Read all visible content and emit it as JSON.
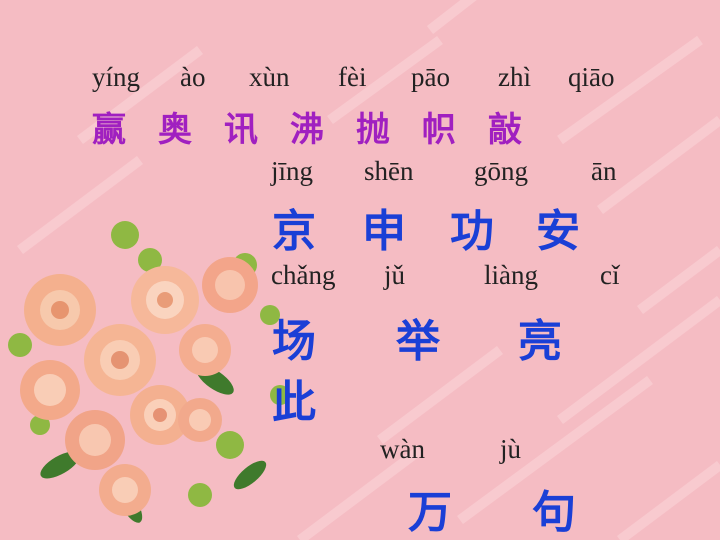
{
  "row1": {
    "pinyin": [
      "yíng",
      "ào",
      "xùn",
      "fèi",
      "pāo",
      "zhì",
      "qiāo"
    ],
    "hanzi": [
      "赢",
      "奥",
      "讯",
      "沸",
      "抛",
      "帜",
      "敲"
    ]
  },
  "row2": {
    "pinyin": [
      "jīng",
      "shēn",
      "gōng",
      "ān"
    ],
    "hanzi": [
      "京",
      "申",
      "功",
      "安"
    ]
  },
  "row3": {
    "pinyin": [
      "chǎng",
      "jǔ",
      "liàng",
      "cǐ"
    ],
    "hanzi": [
      "场",
      "举",
      "亮",
      "此"
    ]
  },
  "row4": {
    "pinyin": [
      "wàn",
      "jù"
    ],
    "hanzi": [
      "万",
      "句"
    ]
  },
  "colors": {
    "background": "#f5bcc3",
    "purple": "#a020c0",
    "blue": "#1a3fd6"
  },
  "decoration": "rose-bouquet-image"
}
